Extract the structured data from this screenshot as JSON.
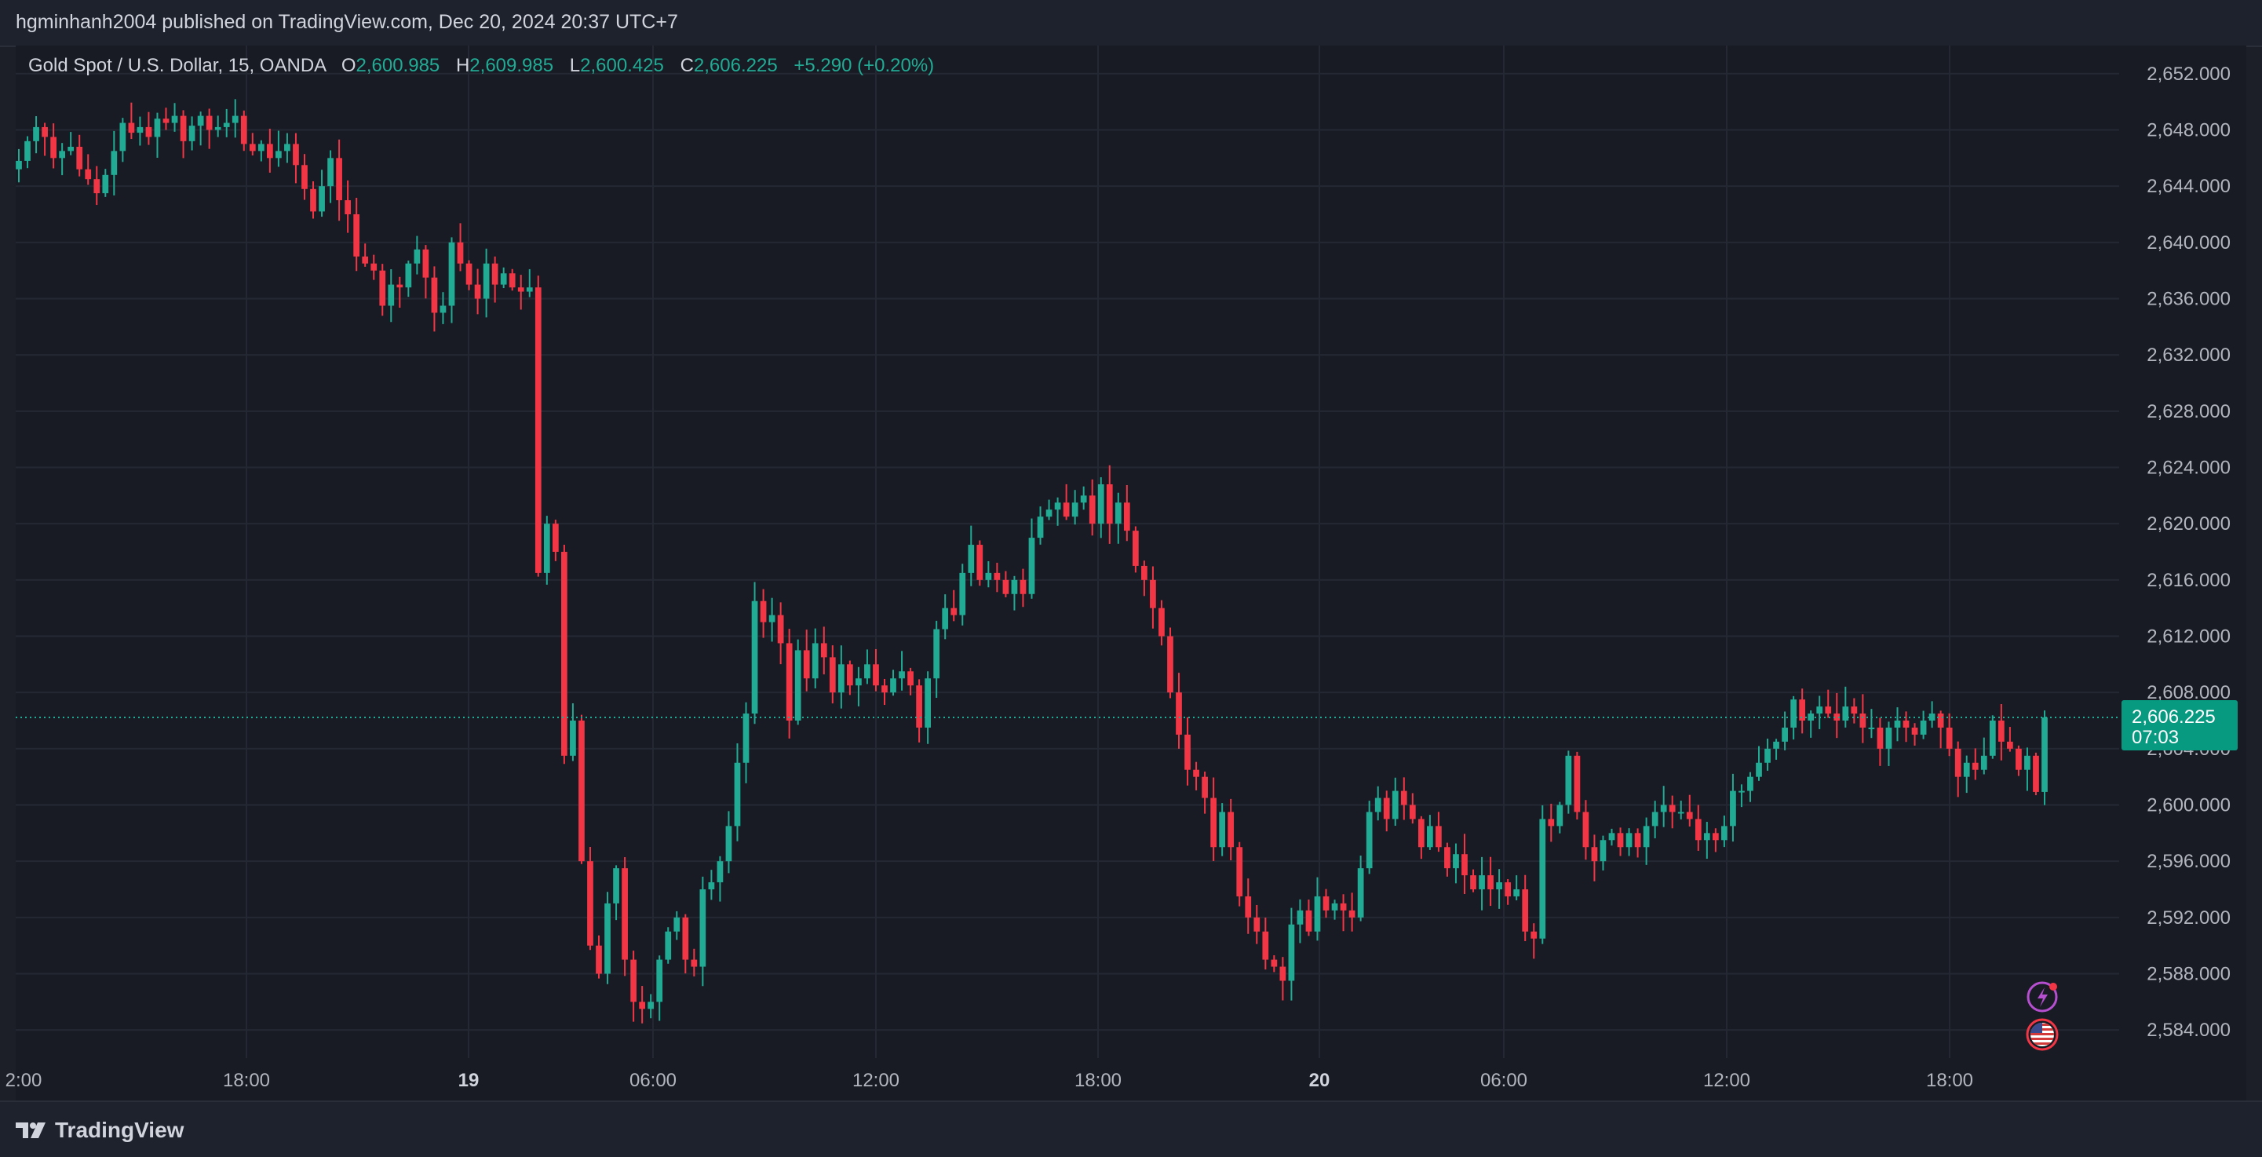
{
  "header": {
    "published": "hgminhanh2004 published on TradingView.com, Dec 20, 2024 20:37 UTC+7"
  },
  "legend": {
    "symbol": "Gold Spot / U.S. Dollar, 15, OANDA",
    "o_label": "O",
    "o_value": "2,600.985",
    "h_label": "H",
    "h_value": "2,609.985",
    "l_label": "L",
    "l_value": "2,600.425",
    "c_label": "C",
    "c_value": "2,606.225",
    "change": "+5.290 (+0.20%)"
  },
  "price_tag": {
    "price": "2,606.225",
    "countdown": "07:03"
  },
  "footer": {
    "brand": "TradingView"
  },
  "colors": {
    "up": "#22ab94",
    "down": "#f23645",
    "grid": "#242833",
    "background": "#181b24"
  },
  "icons": [
    "lightning-event-icon",
    "us-flag-event-icon"
  ],
  "chart_data": {
    "type": "candlestick",
    "symbol": "XAUUSD",
    "interval": "15",
    "ylim": [
      2582,
      2654
    ],
    "y_ticks": [
      "2,652.000",
      "2,648.000",
      "2,644.000",
      "2,640.000",
      "2,636.000",
      "2,632.000",
      "2,628.000",
      "2,624.000",
      "2,620.000",
      "2,616.000",
      "2,612.000",
      "2,608.000",
      "2,604.000",
      "2,600.000",
      "2,596.000",
      "2,592.000",
      "2,588.000",
      "2,584.000"
    ],
    "x_ticks": [
      {
        "label": "2:00",
        "bold": false
      },
      {
        "label": "18:00",
        "bold": false
      },
      {
        "label": "19",
        "bold": true
      },
      {
        "label": "06:00",
        "bold": false
      },
      {
        "label": "12:00",
        "bold": false
      },
      {
        "label": "18:00",
        "bold": false
      },
      {
        "label": "20",
        "bold": true
      },
      {
        "label": "06:00",
        "bold": false
      },
      {
        "label": "12:00",
        "bold": false
      },
      {
        "label": "18:00",
        "bold": false
      }
    ],
    "last_price": 2606.225,
    "close_path": [
      2645.8,
      2647.2,
      2648.2,
      2647.5,
      2646.0,
      2646.5,
      2646.8,
      2645.2,
      2644.5,
      2643.5,
      2644.8,
      2646.5,
      2648.5,
      2647.8,
      2648.2,
      2647.5,
      2648.8,
      2648.5,
      2649.0,
      2647.2,
      2648.3,
      2649.0,
      2648.0,
      2648.2,
      2648.5,
      2649.0,
      2647.0,
      2646.5,
      2647.0,
      2646.0,
      2646.5,
      2647.0,
      2645.5,
      2643.8,
      2642.2,
      2644.0,
      2646.0,
      2643.0,
      2642.0,
      2639.0,
      2638.5,
      2638.0,
      2635.5,
      2637.0,
      2636.8,
      2638.5,
      2639.5,
      2637.5,
      2635.0,
      2635.5,
      2640.0,
      2638.5,
      2637.0,
      2636.0,
      2638.5,
      2637.0,
      2637.8,
      2636.8,
      2636.5,
      2636.8,
      2616.5,
      2620.0,
      2618.0,
      2603.5,
      2606.0,
      2596.0,
      2590.0,
      2588.0,
      2593.0,
      2595.5,
      2589.0,
      2586.0,
      2585.5,
      2586.0,
      2589.0,
      2591.0,
      2592.0,
      2589.0,
      2588.5,
      2594.0,
      2594.5,
      2596.0,
      2598.5,
      2603.0,
      2606.5,
      2614.5,
      2613.0,
      2613.5,
      2611.5,
      2606.0,
      2611.0,
      2609.0,
      2611.5,
      2610.5,
      2608.0,
      2610.0,
      2608.5,
      2609.0,
      2610.0,
      2608.5,
      2608.0,
      2609.0,
      2609.5,
      2608.5,
      2605.5,
      2609.0,
      2612.5,
      2614.0,
      2613.5,
      2616.5,
      2618.5,
      2616.0,
      2616.5,
      2616.0,
      2615.0,
      2616.0,
      2615.0,
      2619.0,
      2620.5,
      2621.0,
      2621.5,
      2620.5,
      2621.5,
      2622.0,
      2620.0,
      2622.8,
      2620.0,
      2621.5,
      2619.5,
      2617.0,
      2616.0,
      2614.0,
      2612.0,
      2608.0,
      2605.0,
      2602.5,
      2602.0,
      2600.5,
      2597.0,
      2599.5,
      2597.0,
      2593.5,
      2592.0,
      2591.0,
      2589.0,
      2588.5,
      2587.5,
      2591.5,
      2592.5,
      2591.0,
      2593.5,
      2592.5,
      2593.0,
      2592.5,
      2592.0,
      2595.5,
      2599.5,
      2600.5,
      2599.0,
      2601.0,
      2600.0,
      2599.0,
      2597.0,
      2598.5,
      2597.0,
      2595.5,
      2596.5,
      2595.0,
      2594.0,
      2595.0,
      2594.0,
      2594.5,
      2593.5,
      2594.0,
      2591.0,
      2590.5,
      2599.0,
      2598.5,
      2600.0,
      2603.5,
      2599.5,
      2597.0,
      2596.0,
      2597.5,
      2598.0,
      2597.0,
      2598.0,
      2597.0,
      2598.5,
      2599.5,
      2600.0,
      2599.5,
      2599.5,
      2599.0,
      2597.5,
      2598.0,
      2597.5,
      2598.5,
      2601.0,
      2601.0,
      2602.0,
      2603.0,
      2604.0,
      2604.5,
      2605.5,
      2607.5,
      2606.0,
      2606.5,
      2607.0,
      2606.5,
      2606.0,
      2607.0,
      2606.5,
      2605.5,
      2605.5,
      2604.0,
      2605.5,
      2606.0,
      2605.5,
      2605.0,
      2606.0,
      2606.5,
      2605.5,
      2604.0,
      2602.0,
      2603.0,
      2602.5,
      2603.5,
      2606.0,
      2604.5,
      2604.0,
      2602.5,
      2603.5,
      2600.925,
      2606.225
    ]
  }
}
